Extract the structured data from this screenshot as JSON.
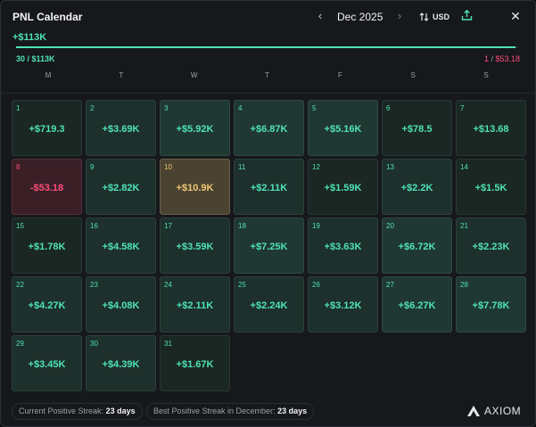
{
  "header": {
    "title": "PNL Calendar",
    "month": "Dec 2025",
    "currency": "USD"
  },
  "summary": {
    "total": "+$113K",
    "win_count": "30",
    "win_total": "$113K",
    "loss_count": "1",
    "loss_total": "$53.18",
    "progress_fraction": 0.995
  },
  "weekdays": [
    "M",
    "T",
    "W",
    "T",
    "F",
    "S",
    "S"
  ],
  "days": [
    {
      "day": "1",
      "pnl": "+$719.3",
      "tone": "t1"
    },
    {
      "day": "2",
      "pnl": "+$3.69K",
      "tone": "t2"
    },
    {
      "day": "3",
      "pnl": "+$5.92K",
      "tone": "t3"
    },
    {
      "day": "4",
      "pnl": "+$6.87K",
      "tone": "t3"
    },
    {
      "day": "5",
      "pnl": "+$5.16K",
      "tone": "t3"
    },
    {
      "day": "6",
      "pnl": "+$78.5",
      "tone": "t1"
    },
    {
      "day": "7",
      "pnl": "+$13.68",
      "tone": "t1"
    },
    {
      "day": "8",
      "pnl": "-$53.18",
      "tone": "neg"
    },
    {
      "day": "9",
      "pnl": "+$2.82K",
      "tone": "t2"
    },
    {
      "day": "10",
      "pnl": "+$10.9K",
      "tone": "best"
    },
    {
      "day": "11",
      "pnl": "+$2.11K",
      "tone": "t2"
    },
    {
      "day": "12",
      "pnl": "+$1.59K",
      "tone": "t1"
    },
    {
      "day": "13",
      "pnl": "+$2.2K",
      "tone": "t2"
    },
    {
      "day": "14",
      "pnl": "+$1.5K",
      "tone": "t1"
    },
    {
      "day": "15",
      "pnl": "+$1.78K",
      "tone": "t1"
    },
    {
      "day": "16",
      "pnl": "+$4.58K",
      "tone": "t2"
    },
    {
      "day": "17",
      "pnl": "+$3.59K",
      "tone": "t2"
    },
    {
      "day": "18",
      "pnl": "+$7.25K",
      "tone": "t3"
    },
    {
      "day": "19",
      "pnl": "+$3.63K",
      "tone": "t2"
    },
    {
      "day": "20",
      "pnl": "+$6.72K",
      "tone": "t3"
    },
    {
      "day": "21",
      "pnl": "+$2.23K",
      "tone": "t2"
    },
    {
      "day": "22",
      "pnl": "+$4.27K",
      "tone": "t2"
    },
    {
      "day": "23",
      "pnl": "+$4.08K",
      "tone": "t2"
    },
    {
      "day": "24",
      "pnl": "+$2.11K",
      "tone": "t2"
    },
    {
      "day": "25",
      "pnl": "+$2.24K",
      "tone": "t2"
    },
    {
      "day": "26",
      "pnl": "+$3.12K",
      "tone": "t2"
    },
    {
      "day": "27",
      "pnl": "+$6.27K",
      "tone": "t3"
    },
    {
      "day": "28",
      "pnl": "+$7.78K",
      "tone": "t3"
    },
    {
      "day": "29",
      "pnl": "+$3.45K",
      "tone": "t2"
    },
    {
      "day": "30",
      "pnl": "+$4.39K",
      "tone": "t2"
    },
    {
      "day": "31",
      "pnl": "+$1.67K",
      "tone": "t1"
    }
  ],
  "streaks": {
    "current_label": "Current Positive Streak:",
    "current_value": "23 days",
    "best_label": "Best Positive Streak in December:",
    "best_value": "23 days"
  },
  "brand": {
    "name": "AXIOM"
  },
  "icons": {
    "prev": "chevron-left-icon",
    "next": "chevron-right-icon",
    "sort": "sort-arrows-icon",
    "share": "share-upload-icon",
    "close": "close-icon",
    "logo": "axiom-logo-icon"
  },
  "colors": {
    "positive": "#4fe3b5",
    "negative": "#ff4d7a",
    "best": "#f0c674",
    "panel": "#16181c"
  }
}
